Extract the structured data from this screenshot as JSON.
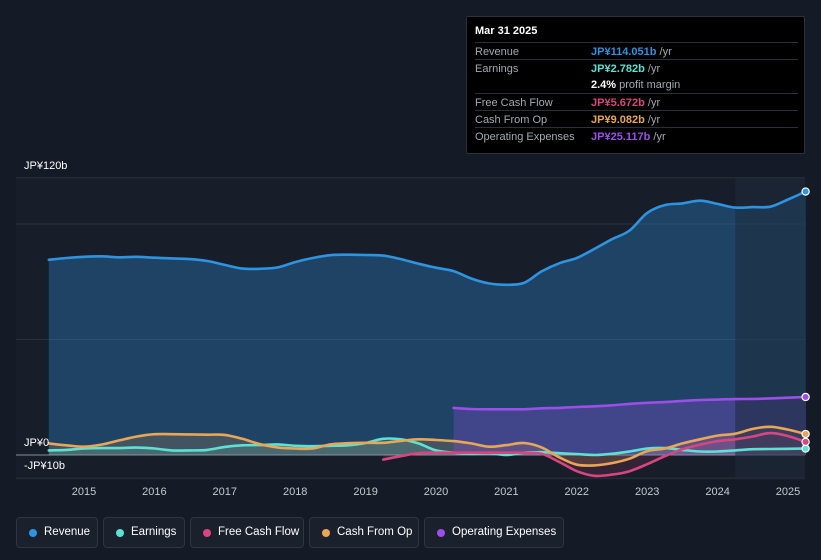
{
  "colors": {
    "revenue": "#2e93e0",
    "earnings": "#5ce1d3",
    "fcf": "#d9467f",
    "cfo": "#e9a657",
    "opex": "#9c4ee8"
  },
  "y_axis": {
    "top_label": "JP¥120b",
    "zero_label": "JP¥0",
    "bottom_label": "-JP¥10b"
  },
  "tooltip": {
    "date": "Mar 31 2025",
    "rows": [
      {
        "label": "Revenue",
        "value": "JP¥114.051b",
        "unit": " /yr",
        "color": "#2e93e0"
      },
      {
        "label": "Earnings",
        "value": "JP¥2.782b",
        "unit": " /yr",
        "color": "#5ce1d3"
      },
      {
        "label": "",
        "value": "2.4%",
        "unit": " profit margin",
        "color": "#ffffff"
      },
      {
        "label": "Free Cash Flow",
        "value": "JP¥5.672b",
        "unit": " /yr",
        "color": "#d9467f"
      },
      {
        "label": "Cash From Op",
        "value": "JP¥9.082b",
        "unit": " /yr",
        "color": "#e9a657"
      },
      {
        "label": "Operating Expenses",
        "value": "JP¥25.117b",
        "unit": " /yr",
        "color": "#9c4ee8"
      }
    ]
  },
  "legend": [
    {
      "label": "Revenue",
      "color": "#2e93e0"
    },
    {
      "label": "Earnings",
      "color": "#5ce1d3"
    },
    {
      "label": "Free Cash Flow",
      "color": "#d9467f"
    },
    {
      "label": "Cash From Op",
      "color": "#e9a657"
    },
    {
      "label": "Operating Expenses",
      "color": "#9c4ee8"
    }
  ],
  "chart_data": {
    "type": "line",
    "title": "",
    "xlabel": "",
    "ylabel": "",
    "x_ticks": [
      "2015",
      "2016",
      "2017",
      "2018",
      "2019",
      "2020",
      "2021",
      "2022",
      "2023",
      "2024",
      "2025"
    ],
    "ylim": [
      -10,
      120
    ],
    "highlight_from": 2024.25,
    "series": [
      {
        "name": "Revenue",
        "key": "revenue",
        "x": [
          2014.5,
          2014.75,
          2015.0,
          2015.25,
          2015.5,
          2015.75,
          2016.0,
          2016.25,
          2016.5,
          2016.75,
          2017.0,
          2017.25,
          2017.5,
          2017.75,
          2018.0,
          2018.25,
          2018.5,
          2018.75,
          2019.0,
          2019.25,
          2019.5,
          2019.75,
          2020.0,
          2020.25,
          2020.5,
          2020.75,
          2021.0,
          2021.25,
          2021.5,
          2021.75,
          2022.0,
          2022.25,
          2022.5,
          2022.75,
          2023.0,
          2023.25,
          2023.5,
          2023.75,
          2024.0,
          2024.25,
          2024.5,
          2024.75,
          2025.0,
          2025.25
        ],
        "values": [
          84.5,
          85.3,
          85.8,
          86.0,
          85.6,
          85.8,
          85.4,
          85.1,
          84.8,
          84.0,
          82.3,
          80.7,
          80.6,
          81.2,
          83.5,
          85.3,
          86.5,
          86.7,
          86.6,
          86.3,
          84.8,
          82.8,
          81.1,
          79.6,
          76.4,
          74.3,
          73.7,
          74.5,
          79.5,
          83.0,
          85.3,
          89.2,
          93.4,
          97.2,
          104.8,
          108.2,
          108.9,
          110.1,
          108.7,
          107.1,
          107.3,
          107.5,
          110.6,
          114.051
        ]
      },
      {
        "name": "Earnings",
        "key": "earnings",
        "x": [
          2014.5,
          2014.75,
          2015.0,
          2015.25,
          2015.5,
          2015.75,
          2016.0,
          2016.25,
          2016.5,
          2016.75,
          2017.0,
          2017.25,
          2017.5,
          2017.75,
          2018.0,
          2018.25,
          2018.5,
          2018.75,
          2019.0,
          2019.25,
          2019.5,
          2019.75,
          2020.0,
          2020.25,
          2020.5,
          2020.75,
          2021.0,
          2021.25,
          2021.5,
          2021.75,
          2022.0,
          2022.25,
          2022.5,
          2022.75,
          2023.0,
          2023.25,
          2023.5,
          2023.75,
          2024.0,
          2024.25,
          2024.5,
          2024.75,
          2025.0,
          2025.25
        ],
        "values": [
          2.0,
          2.2,
          2.8,
          3.0,
          3.0,
          3.2,
          2.8,
          2.0,
          2.0,
          2.2,
          3.5,
          4.2,
          4.3,
          4.6,
          4.0,
          3.8,
          4.0,
          4.2,
          5.2,
          7.0,
          6.8,
          5.0,
          2.0,
          1.0,
          0.5,
          0.8,
          0.0,
          1.0,
          1.2,
          0.8,
          0.4,
          0.0,
          0.5,
          1.5,
          2.8,
          3.0,
          2.2,
          1.5,
          1.5,
          2.0,
          2.5,
          2.6,
          2.7,
          2.782
        ]
      },
      {
        "name": "Free Cash Flow",
        "key": "fcf",
        "x": [
          2019.25,
          2019.5,
          2019.75,
          2020.0,
          2020.25,
          2020.5,
          2020.75,
          2021.0,
          2021.25,
          2021.5,
          2021.75,
          2022.0,
          2022.25,
          2022.5,
          2022.75,
          2023.0,
          2023.25,
          2023.5,
          2023.75,
          2024.0,
          2024.25,
          2024.5,
          2024.75,
          2025.0,
          2025.25
        ],
        "values": [
          -2.0,
          -0.5,
          0.8,
          1.0,
          1.0,
          1.0,
          1.0,
          1.0,
          1.0,
          0.5,
          -3.0,
          -7.0,
          -9.0,
          -8.5,
          -7.0,
          -4.0,
          -0.5,
          2.5,
          4.5,
          6.0,
          6.8,
          8.0,
          9.5,
          8.2,
          5.672
        ]
      },
      {
        "name": "Cash From Op",
        "key": "cfo",
        "x": [
          2014.5,
          2014.75,
          2015.0,
          2015.25,
          2015.5,
          2015.75,
          2016.0,
          2016.25,
          2016.5,
          2016.75,
          2017.0,
          2017.25,
          2017.5,
          2017.75,
          2018.0,
          2018.25,
          2018.5,
          2018.75,
          2019.0,
          2019.25,
          2019.5,
          2019.75,
          2020.0,
          2020.25,
          2020.5,
          2020.75,
          2021.0,
          2021.25,
          2021.5,
          2021.75,
          2022.0,
          2022.25,
          2022.5,
          2022.75,
          2023.0,
          2023.25,
          2023.5,
          2023.75,
          2024.0,
          2024.25,
          2024.5,
          2024.75,
          2025.0,
          2025.25
        ],
        "values": [
          5.0,
          4.2,
          3.6,
          4.5,
          6.3,
          8.0,
          9.0,
          9.0,
          8.9,
          8.8,
          8.7,
          7.0,
          4.7,
          3.3,
          2.8,
          2.8,
          4.6,
          5.1,
          5.3,
          5.3,
          6.1,
          6.8,
          6.5,
          6.0,
          5.0,
          3.6,
          4.3,
          5.2,
          3.3,
          -1.0,
          -4.2,
          -4.5,
          -3.5,
          -1.6,
          1.7,
          2.8,
          5.0,
          6.8,
          8.4,
          9.2,
          11.3,
          12.2,
          11.0,
          9.082
        ]
      },
      {
        "name": "Operating Expenses",
        "key": "opex",
        "x": [
          2020.25,
          2020.5,
          2020.75,
          2021.0,
          2021.25,
          2021.5,
          2021.75,
          2022.0,
          2022.25,
          2022.5,
          2022.75,
          2023.0,
          2023.25,
          2023.5,
          2023.75,
          2024.0,
          2024.25,
          2024.5,
          2024.75,
          2025.0,
          2025.25
        ],
        "values": [
          20.4,
          19.9,
          19.8,
          19.8,
          19.8,
          20.2,
          20.4,
          20.8,
          21.1,
          21.5,
          22.1,
          22.6,
          22.9,
          23.4,
          23.8,
          24.0,
          24.2,
          24.3,
          24.5,
          24.8,
          25.117
        ]
      }
    ]
  }
}
